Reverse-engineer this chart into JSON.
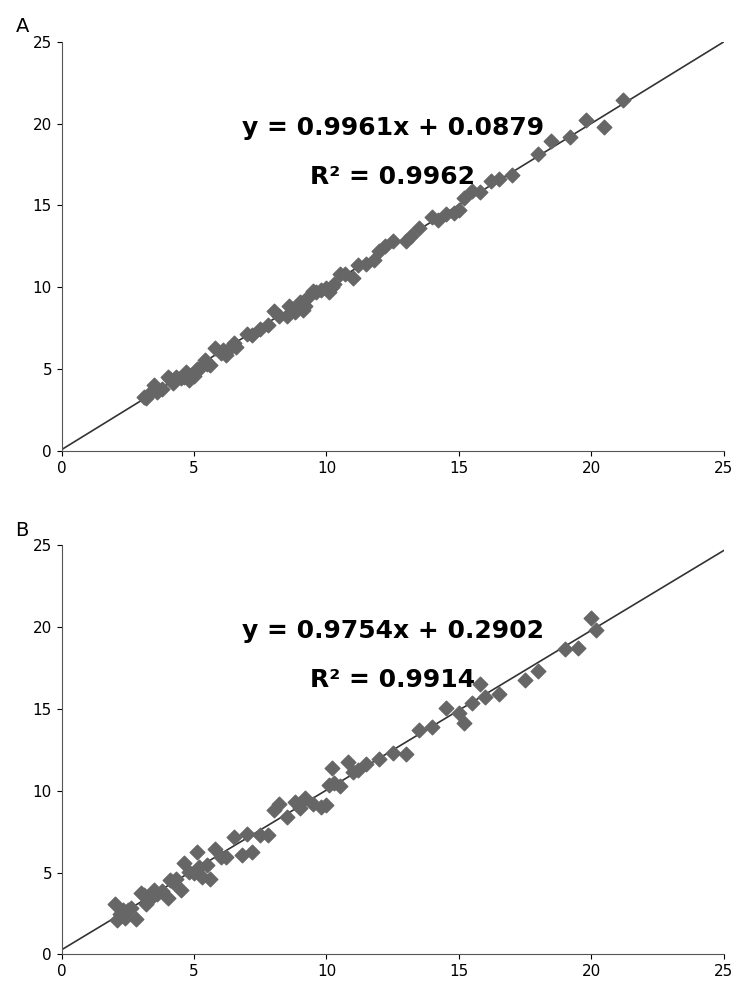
{
  "panel_A": {
    "label": "A",
    "equation": "y = 0.9961x + 0.0879",
    "r2": "R² = 0.9962",
    "slope": 0.9961,
    "intercept": 0.0879,
    "xlim": [
      0,
      25
    ],
    "ylim": [
      0,
      25
    ],
    "xticks": [
      0,
      5,
      10,
      15,
      20,
      25
    ],
    "yticks": [
      0,
      5,
      10,
      15,
      20,
      25
    ],
    "scatter_color": "#666666",
    "line_color": "#333333",
    "noise_seed": 42,
    "noise_scale": 0.28,
    "x_data": [
      3.1,
      3.2,
      3.4,
      3.5,
      3.6,
      3.8,
      4.0,
      4.1,
      4.2,
      4.3,
      4.5,
      4.6,
      4.7,
      4.8,
      5.0,
      5.1,
      5.2,
      5.4,
      5.5,
      5.6,
      5.8,
      6.0,
      6.1,
      6.2,
      6.3,
      6.5,
      6.6,
      7.0,
      7.2,
      7.5,
      7.8,
      8.0,
      8.2,
      8.5,
      8.6,
      8.8,
      9.0,
      9.1,
      9.2,
      9.3,
      9.5,
      9.6,
      9.8,
      10.0,
      10.1,
      10.2,
      10.3,
      10.5,
      10.7,
      11.0,
      11.2,
      11.5,
      11.8,
      12.0,
      12.2,
      12.5,
      13.0,
      13.2,
      13.5,
      14.0,
      14.2,
      14.5,
      14.8,
      15.0,
      15.2,
      15.5,
      15.8,
      16.2,
      16.5,
      17.0,
      18.0,
      18.5,
      19.2,
      19.8,
      20.5,
      21.2
    ]
  },
  "panel_B": {
    "label": "B",
    "equation": "y = 0.9754x + 0.2902",
    "r2": "R² = 0.9914",
    "slope": 0.9754,
    "intercept": 0.2902,
    "xlim": [
      0,
      25
    ],
    "ylim": [
      0,
      25
    ],
    "xticks": [
      0,
      5,
      10,
      15,
      20,
      25
    ],
    "yticks": [
      0,
      5,
      10,
      15,
      20,
      25
    ],
    "scatter_color": "#666666",
    "line_color": "#333333",
    "noise_seed": 7,
    "noise_scale": 0.5,
    "x_data": [
      2.0,
      2.1,
      2.2,
      2.3,
      2.4,
      2.5,
      2.6,
      2.8,
      3.0,
      3.1,
      3.2,
      3.4,
      3.5,
      3.6,
      3.8,
      4.0,
      4.1,
      4.2,
      4.3,
      4.5,
      4.6,
      4.8,
      5.0,
      5.1,
      5.2,
      5.3,
      5.5,
      5.6,
      5.8,
      6.0,
      6.2,
      6.5,
      6.8,
      7.0,
      7.2,
      7.5,
      7.8,
      8.0,
      8.2,
      8.5,
      8.8,
      9.0,
      9.2,
      9.5,
      9.8,
      10.0,
      10.1,
      10.2,
      10.3,
      10.5,
      10.8,
      11.0,
      11.2,
      11.5,
      12.0,
      12.5,
      13.0,
      13.5,
      14.0,
      14.5,
      15.0,
      15.2,
      15.5,
      15.8,
      16.0,
      16.5,
      17.5,
      18.0,
      19.0,
      19.5,
      20.0,
      20.2
    ]
  },
  "background_color": "#ffffff",
  "marker_size": 55,
  "marker": "D",
  "equation_fontsize": 18,
  "label_fontsize": 14
}
